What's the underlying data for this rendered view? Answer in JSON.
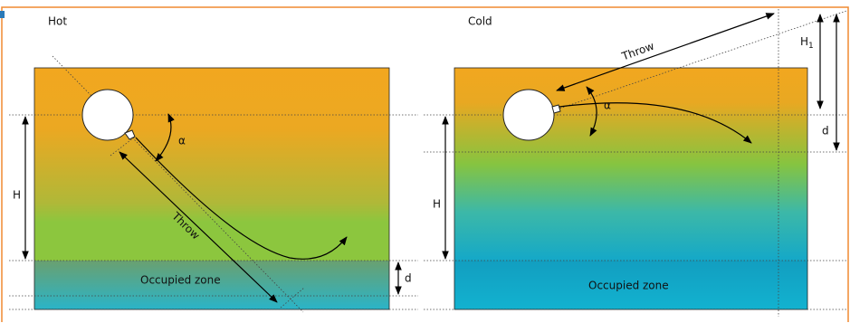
{
  "panels": [
    {
      "title": "Hot",
      "throw": "Throw",
      "angle": "α",
      "height": "H",
      "depth": "d",
      "zone": "Occupied zone"
    },
    {
      "title": "Cold",
      "throw": "Throw",
      "angle": "α",
      "height": "H",
      "height1": {
        "base": "H",
        "sub": "1"
      },
      "depth": "d",
      "zone": "Occupied zone"
    }
  ]
}
